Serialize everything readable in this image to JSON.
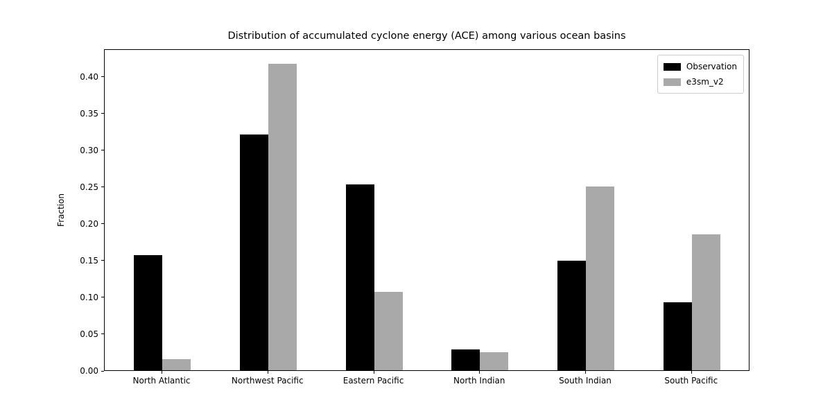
{
  "chart_data": {
    "type": "bar",
    "title": "Distribution of accumulated cyclone energy (ACE) among various ocean basins",
    "xlabel": "",
    "ylabel": "Fraction",
    "categories": [
      "North Atlantic",
      "Northwest Pacific",
      "Eastern Pacific",
      "North Indian",
      "South Indian",
      "South Pacific"
    ],
    "series": [
      {
        "name": "Observation",
        "color": "#000000",
        "values": [
          0.157,
          0.321,
          0.253,
          0.028,
          0.149,
          0.092
        ]
      },
      {
        "name": "e3sm_v2",
        "color": "#a9a9a9",
        "values": [
          0.015,
          0.417,
          0.107,
          0.025,
          0.25,
          0.185
        ]
      }
    ],
    "yticks": [
      0.0,
      0.05,
      0.1,
      0.15,
      0.2,
      0.25,
      0.3,
      0.35,
      0.4
    ],
    "ytick_format_decimals": 2,
    "ylim": [
      0,
      0.4375
    ],
    "legend_position": "upper right",
    "grid": false,
    "background_color": "#ffffff",
    "axis_color": "#000000",
    "legend_border_color": "#cccccc"
  }
}
